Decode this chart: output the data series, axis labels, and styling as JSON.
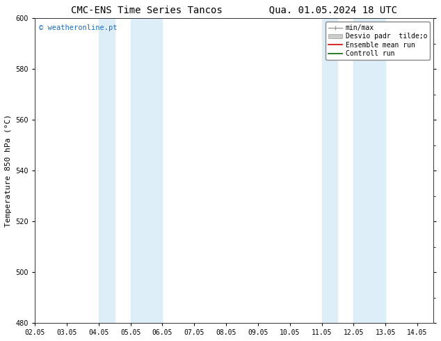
{
  "title_left": "CMC-ENS Time Series Tancos",
  "title_right": "Qua. 01.05.2024 18 UTC",
  "ylabel": "Temperature 850 hPa (°C)",
  "xlim": [
    0,
    12.5
  ],
  "ylim": [
    480,
    600
  ],
  "yticks": [
    480,
    500,
    520,
    540,
    560,
    580,
    600
  ],
  "xtick_labels": [
    "02.05",
    "03.05",
    "04.05",
    "05.05",
    "06.05",
    "07.05",
    "08.05",
    "09.05",
    "10.05",
    "11.05",
    "12.05",
    "13.05",
    "14.05"
  ],
  "shaded_bands": [
    {
      "x_start": 2.0,
      "x_end": 2.5,
      "color": "#ddeef8"
    },
    {
      "x_start": 3.0,
      "x_end": 4.0,
      "color": "#ddeef8"
    },
    {
      "x_start": 9.0,
      "x_end": 9.5,
      "color": "#ddeef8"
    },
    {
      "x_start": 10.0,
      "x_end": 11.0,
      "color": "#ddeef8"
    }
  ],
  "watermark_text": "© weatheronline.pt",
  "watermark_color": "#1a6fc4",
  "bg_color": "#ffffff",
  "plot_bg_color": "#ffffff",
  "spine_color": "#333333",
  "title_fontsize": 10,
  "tick_fontsize": 7,
  "ylabel_fontsize": 8,
  "legend_fontsize": 7,
  "legend_entries": [
    {
      "label": "min/max",
      "color": "#999999"
    },
    {
      "label": "Desvio padr  tilde;o",
      "color": "#cccccc"
    },
    {
      "label": "Ensemble mean run",
      "color": "#cc0000"
    },
    {
      "label": "Controll run",
      "color": "#006600"
    }
  ]
}
